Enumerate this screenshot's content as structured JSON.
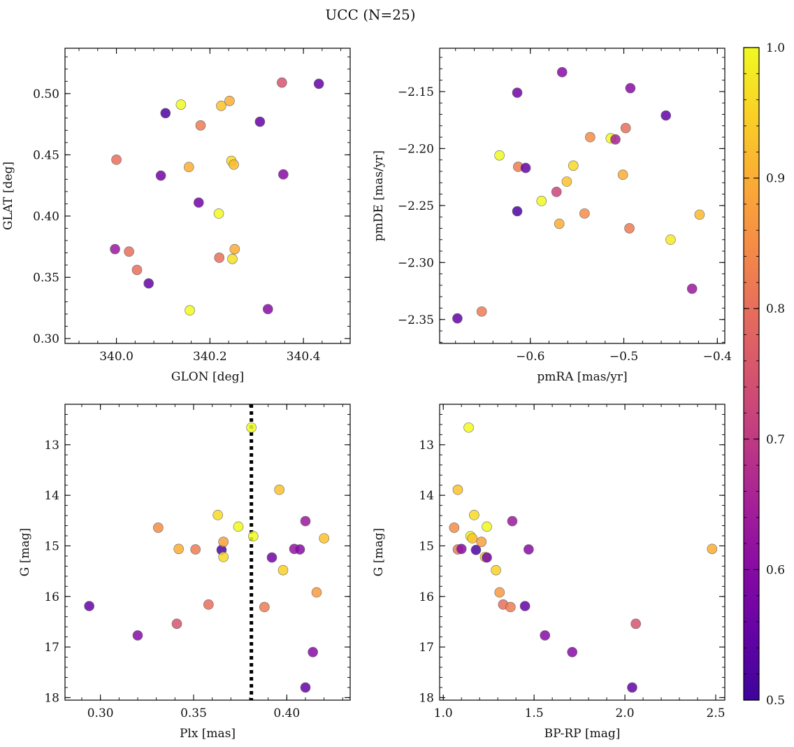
{
  "figure": {
    "title": "UCC (N=25)",
    "colorbar": {
      "min": 0.5,
      "max": 1.0,
      "ticks": [
        "0.5",
        "0.6",
        "0.7",
        "0.8",
        "0.9",
        "1.0"
      ],
      "colormap": "plasma"
    }
  },
  "chart_data": [
    {
      "type": "scatter",
      "xlabel": "GLON [deg]",
      "ylabel": "GLAT [deg]",
      "xlim": [
        339.89,
        340.5
      ],
      "ylim": [
        0.296,
        0.537
      ],
      "xticks": [
        {
          "v": 340.0,
          "label": "340.0"
        },
        {
          "v": 340.2,
          "label": "340.2"
        },
        {
          "v": 340.4,
          "label": "340.4"
        }
      ],
      "yticks": [
        {
          "v": 0.3,
          "label": "0.30"
        },
        {
          "v": 0.35,
          "label": "0.35"
        },
        {
          "v": 0.4,
          "label": "0.40"
        },
        {
          "v": 0.45,
          "label": "0.45"
        },
        {
          "v": 0.5,
          "label": "0.50"
        }
      ],
      "invert_y": false,
      "points": [
        {
          "x": 339.997,
          "y": 0.373,
          "c": 0.63
        },
        {
          "x": 340.027,
          "y": 0.371,
          "c": 0.8
        },
        {
          "x": 340.044,
          "y": 0.356,
          "c": 0.8
        },
        {
          "x": 340.0,
          "y": 0.446,
          "c": 0.8
        },
        {
          "x": 340.069,
          "y": 0.345,
          "c": 0.55
        },
        {
          "x": 340.095,
          "y": 0.433,
          "c": 0.57
        },
        {
          "x": 340.105,
          "y": 0.484,
          "c": 0.52
        },
        {
          "x": 340.138,
          "y": 0.491,
          "c": 1.0
        },
        {
          "x": 340.155,
          "y": 0.44,
          "c": 0.9
        },
        {
          "x": 340.157,
          "y": 0.323,
          "c": 1.0
        },
        {
          "x": 340.176,
          "y": 0.411,
          "c": 0.57
        },
        {
          "x": 340.18,
          "y": 0.474,
          "c": 0.82
        },
        {
          "x": 340.219,
          "y": 0.402,
          "c": 1.0
        },
        {
          "x": 340.22,
          "y": 0.366,
          "c": 0.8
        },
        {
          "x": 340.224,
          "y": 0.49,
          "c": 0.93
        },
        {
          "x": 340.242,
          "y": 0.494,
          "c": 0.9
        },
        {
          "x": 340.246,
          "y": 0.445,
          "c": 0.96
        },
        {
          "x": 340.248,
          "y": 0.365,
          "c": 0.97
        },
        {
          "x": 340.251,
          "y": 0.442,
          "c": 0.92
        },
        {
          "x": 340.253,
          "y": 0.373,
          "c": 0.9
        },
        {
          "x": 340.307,
          "y": 0.477,
          "c": 0.55
        },
        {
          "x": 340.324,
          "y": 0.324,
          "c": 0.6
        },
        {
          "x": 340.354,
          "y": 0.509,
          "c": 0.75
        },
        {
          "x": 340.357,
          "y": 0.434,
          "c": 0.6
        },
        {
          "x": 340.433,
          "y": 0.508,
          "c": 0.55
        }
      ]
    },
    {
      "type": "scatter",
      "xlabel": "pmRA [mas/yr]",
      "ylabel": "pmDE [mas/yr]",
      "xlim": [
        -0.697,
        -0.392
      ],
      "ylim": [
        -2.371,
        -2.112
      ],
      "xticks": [
        {
          "v": -0.6,
          "label": "−0.6"
        },
        {
          "v": -0.5,
          "label": "−0.5"
        },
        {
          "v": -0.4,
          "label": "−0.4"
        }
      ],
      "yticks": [
        {
          "v": -2.35,
          "label": "−2.35"
        },
        {
          "v": -2.3,
          "label": "−2.30"
        },
        {
          "v": -2.25,
          "label": "−2.25"
        },
        {
          "v": -2.2,
          "label": "−2.20"
        },
        {
          "v": -2.15,
          "label": "−2.15"
        }
      ],
      "invert_y": false,
      "points": [
        {
          "x": -0.678,
          "y": -2.349,
          "c": 0.55
        },
        {
          "x": -0.652,
          "y": -2.343,
          "c": 0.82
        },
        {
          "x": -0.633,
          "y": -2.206,
          "c": 1.0
        },
        {
          "x": -0.614,
          "y": -2.151,
          "c": 0.57
        },
        {
          "x": -0.614,
          "y": -2.255,
          "c": 0.52
        },
        {
          "x": -0.613,
          "y": -2.216,
          "c": 0.82
        },
        {
          "x": -0.605,
          "y": -2.217,
          "c": 0.55
        },
        {
          "x": -0.588,
          "y": -2.246,
          "c": 1.0
        },
        {
          "x": -0.572,
          "y": -2.238,
          "c": 0.72
        },
        {
          "x": -0.569,
          "y": -2.266,
          "c": 0.9
        },
        {
          "x": -0.566,
          "y": -2.133,
          "c": 0.6
        },
        {
          "x": -0.561,
          "y": -2.229,
          "c": 0.93
        },
        {
          "x": -0.554,
          "y": -2.215,
          "c": 0.96
        },
        {
          "x": -0.542,
          "y": -2.257,
          "c": 0.85
        },
        {
          "x": -0.536,
          "y": -2.19,
          "c": 0.85
        },
        {
          "x": -0.514,
          "y": -2.191,
          "c": 1.0
        },
        {
          "x": -0.509,
          "y": -2.192,
          "c": 0.65
        },
        {
          "x": -0.501,
          "y": -2.223,
          "c": 0.9
        },
        {
          "x": -0.498,
          "y": -2.182,
          "c": 0.8
        },
        {
          "x": -0.494,
          "y": -2.27,
          "c": 0.82
        },
        {
          "x": -0.493,
          "y": -2.147,
          "c": 0.6
        },
        {
          "x": -0.455,
          "y": -2.171,
          "c": 0.55
        },
        {
          "x": -0.45,
          "y": -2.28,
          "c": 0.98
        },
        {
          "x": -0.427,
          "y": -2.323,
          "c": 0.63
        },
        {
          "x": -0.419,
          "y": -2.258,
          "c": 0.92
        }
      ]
    },
    {
      "type": "scatter",
      "xlabel": "Plx [mas]",
      "ylabel": "G [mag]",
      "xlim": [
        0.281,
        0.434
      ],
      "ylim": [
        12.2,
        18.05
      ],
      "xticks": [
        {
          "v": 0.3,
          "label": "0.30"
        },
        {
          "v": 0.35,
          "label": "0.35"
        },
        {
          "v": 0.4,
          "label": "0.40"
        }
      ],
      "yticks": [
        {
          "v": 13,
          "label": "13"
        },
        {
          "v": 14,
          "label": "14"
        },
        {
          "v": 15,
          "label": "15"
        },
        {
          "v": 16,
          "label": "16"
        },
        {
          "v": 17,
          "label": "17"
        },
        {
          "v": 18,
          "label": "18"
        }
      ],
      "invert_y": true,
      "vline": 0.381,
      "points": [
        {
          "x": 0.294,
          "y": 16.19,
          "c": 0.55
        },
        {
          "x": 0.32,
          "y": 16.77,
          "c": 0.6
        },
        {
          "x": 0.331,
          "y": 14.64,
          "c": 0.85
        },
        {
          "x": 0.341,
          "y": 16.54,
          "c": 0.75
        },
        {
          "x": 0.342,
          "y": 15.06,
          "c": 0.9
        },
        {
          "x": 0.351,
          "y": 15.07,
          "c": 0.82
        },
        {
          "x": 0.358,
          "y": 16.16,
          "c": 0.8
        },
        {
          "x": 0.363,
          "y": 14.39,
          "c": 0.96
        },
        {
          "x": 0.365,
          "y": 15.08,
          "c": 0.52
        },
        {
          "x": 0.366,
          "y": 14.92,
          "c": 0.88
        },
        {
          "x": 0.366,
          "y": 15.22,
          "c": 0.96
        },
        {
          "x": 0.374,
          "y": 14.62,
          "c": 1.0
        },
        {
          "x": 0.381,
          "y": 12.66,
          "c": 1.0
        },
        {
          "x": 0.382,
          "y": 14.81,
          "c": 1.0
        },
        {
          "x": 0.388,
          "y": 16.21,
          "c": 0.82
        },
        {
          "x": 0.392,
          "y": 15.23,
          "c": 0.57
        },
        {
          "x": 0.396,
          "y": 13.89,
          "c": 0.93
        },
        {
          "x": 0.398,
          "y": 15.48,
          "c": 0.95
        },
        {
          "x": 0.404,
          "y": 15.06,
          "c": 0.62
        },
        {
          "x": 0.407,
          "y": 15.07,
          "c": 0.6
        },
        {
          "x": 0.41,
          "y": 14.51,
          "c": 0.63
        },
        {
          "x": 0.41,
          "y": 17.8,
          "c": 0.55
        },
        {
          "x": 0.414,
          "y": 17.1,
          "c": 0.6
        },
        {
          "x": 0.416,
          "y": 15.92,
          "c": 0.87
        },
        {
          "x": 0.42,
          "y": 14.85,
          "c": 0.93
        }
      ]
    },
    {
      "type": "scatter",
      "xlabel": "BP-RP [mag]",
      "ylabel": "G [mag]",
      "xlim": [
        0.98,
        2.55
      ],
      "ylim": [
        12.2,
        18.05
      ],
      "xticks": [
        {
          "v": 1.0,
          "label": "1.0"
        },
        {
          "v": 1.5,
          "label": "1.5"
        },
        {
          "v": 2.0,
          "label": "2.0"
        },
        {
          "v": 2.5,
          "label": "2.5"
        }
      ],
      "yticks": [
        {
          "v": 13,
          "label": "13"
        },
        {
          "v": 14,
          "label": "14"
        },
        {
          "v": 15,
          "label": "15"
        },
        {
          "v": 16,
          "label": "16"
        },
        {
          "v": 17,
          "label": "17"
        },
        {
          "v": 18,
          "label": "18"
        }
      ],
      "invert_y": true,
      "points": [
        {
          "x": 1.06,
          "y": 14.64,
          "c": 0.85
        },
        {
          "x": 1.08,
          "y": 13.89,
          "c": 0.93
        },
        {
          "x": 1.08,
          "y": 15.07,
          "c": 0.82
        },
        {
          "x": 1.1,
          "y": 15.06,
          "c": 0.6
        },
        {
          "x": 1.14,
          "y": 12.66,
          "c": 1.0
        },
        {
          "x": 1.15,
          "y": 14.81,
          "c": 1.0
        },
        {
          "x": 1.16,
          "y": 14.85,
          "c": 0.93
        },
        {
          "x": 1.17,
          "y": 14.39,
          "c": 0.96
        },
        {
          "x": 1.18,
          "y": 15.08,
          "c": 0.52
        },
        {
          "x": 1.21,
          "y": 14.92,
          "c": 0.88
        },
        {
          "x": 1.23,
          "y": 15.22,
          "c": 0.96
        },
        {
          "x": 1.24,
          "y": 15.23,
          "c": 0.57
        },
        {
          "x": 1.24,
          "y": 14.62,
          "c": 1.0
        },
        {
          "x": 1.29,
          "y": 15.48,
          "c": 0.95
        },
        {
          "x": 1.31,
          "y": 15.92,
          "c": 0.87
        },
        {
          "x": 1.33,
          "y": 16.16,
          "c": 0.8
        },
        {
          "x": 1.37,
          "y": 16.21,
          "c": 0.82
        },
        {
          "x": 1.38,
          "y": 14.51,
          "c": 0.63
        },
        {
          "x": 1.45,
          "y": 16.19,
          "c": 0.55
        },
        {
          "x": 1.47,
          "y": 15.07,
          "c": 0.6
        },
        {
          "x": 1.56,
          "y": 16.77,
          "c": 0.6
        },
        {
          "x": 1.71,
          "y": 17.1,
          "c": 0.6
        },
        {
          "x": 2.04,
          "y": 17.8,
          "c": 0.55
        },
        {
          "x": 2.06,
          "y": 16.54,
          "c": 0.75
        },
        {
          "x": 2.48,
          "y": 15.06,
          "c": 0.9
        }
      ]
    }
  ]
}
